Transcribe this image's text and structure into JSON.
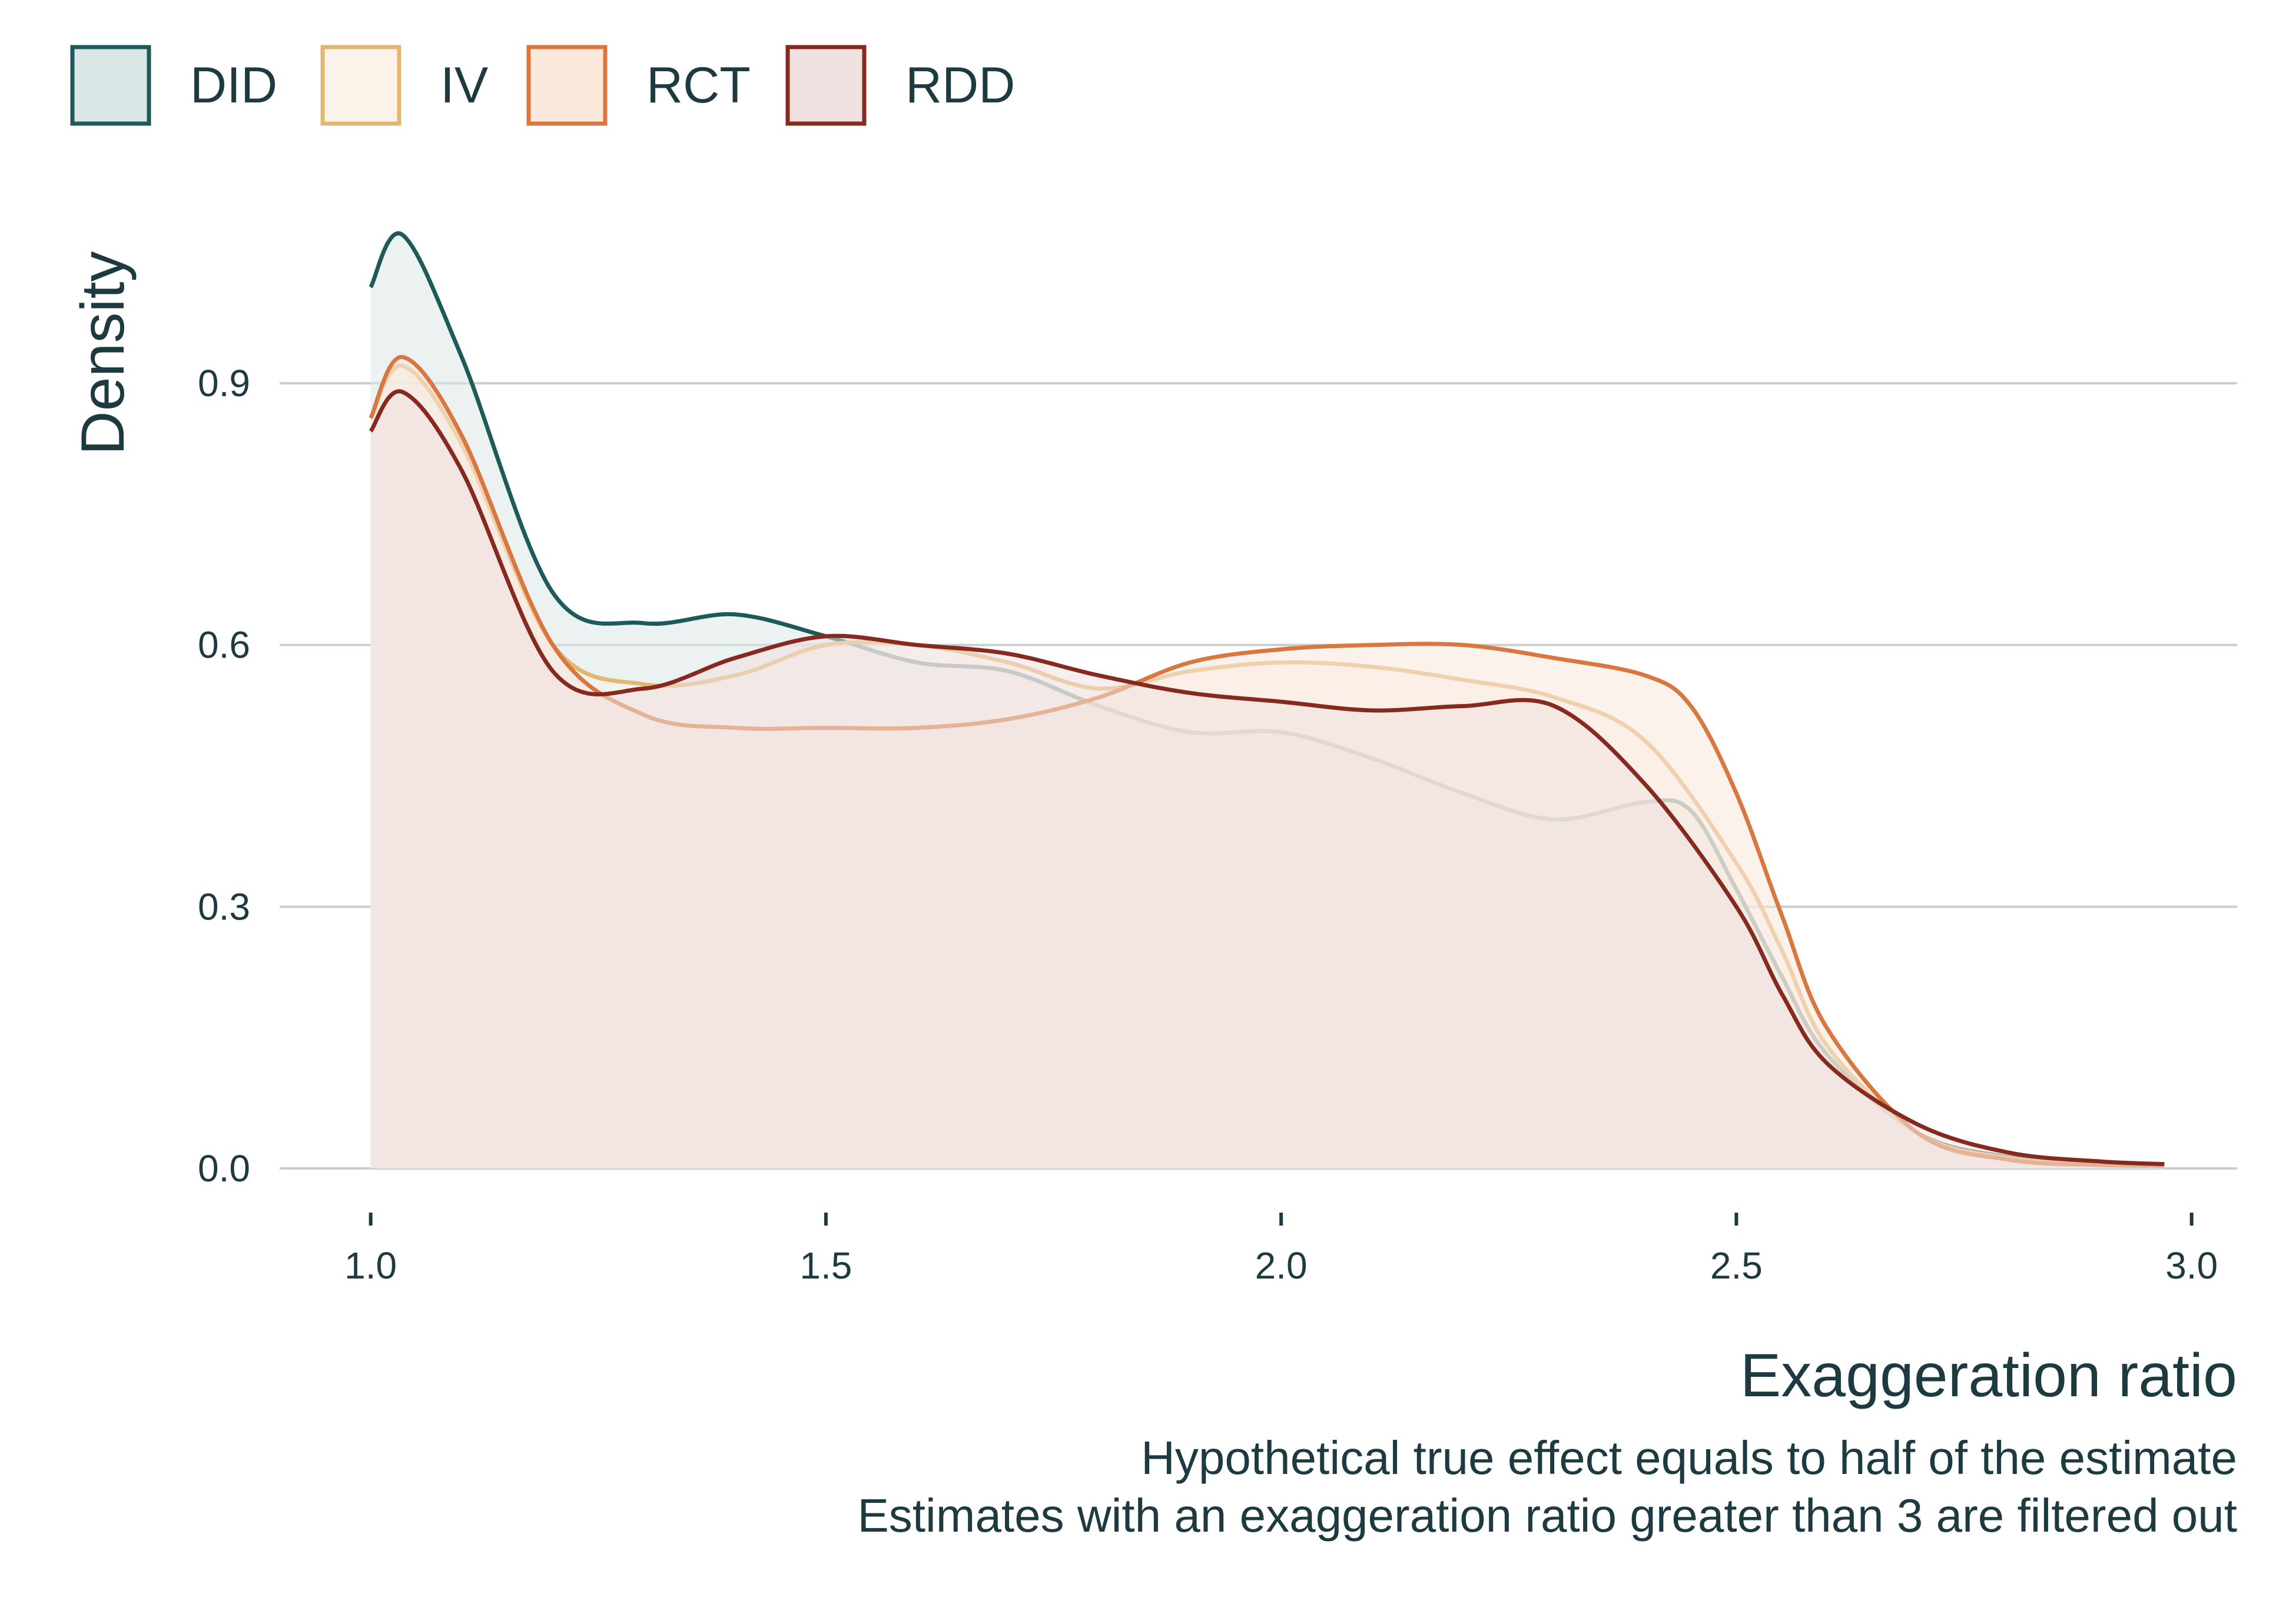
{
  "chart_data": {
    "type": "area",
    "title": "",
    "xlabel": "Exaggeration ratio",
    "ylabel": "Density",
    "caption_lines": [
      "Hypothetical true effect equals to half of the estimate",
      "Estimates with an exaggeration ratio greater than 3 are filtered out"
    ],
    "xlim": [
      0.9,
      3.05
    ],
    "ylim": [
      0,
      1.12
    ],
    "x_ticks": [
      "1.0",
      "1.5",
      "2.0",
      "2.5",
      "3.0"
    ],
    "y_ticks": [
      "0.0",
      "0.3",
      "0.6",
      "0.9"
    ],
    "grid": "horizontal",
    "legend_position": "top-left",
    "series": [
      {
        "name": "DID",
        "stroke": "#1f5a5a",
        "fill": "#dbe7e6",
        "x": [
          1.0,
          1.035,
          1.1,
          1.2,
          1.3,
          1.4,
          1.5,
          1.6,
          1.7,
          1.8,
          1.9,
          2.0,
          2.1,
          2.2,
          2.3,
          2.4,
          2.45,
          2.5,
          2.55,
          2.6,
          2.7,
          2.8,
          2.9,
          2.97
        ],
        "y": [
          1.01,
          1.07,
          0.93,
          0.66,
          0.625,
          0.635,
          0.61,
          0.58,
          0.57,
          0.53,
          0.5,
          0.5,
          0.47,
          0.43,
          0.4,
          0.42,
          0.41,
          0.32,
          0.22,
          0.13,
          0.04,
          0.013,
          0.006,
          0.005
        ]
      },
      {
        "name": "IV",
        "stroke": "#e2b774",
        "fill": "#fbf3ea",
        "x": [
          1.0,
          1.035,
          1.1,
          1.2,
          1.3,
          1.4,
          1.5,
          1.6,
          1.7,
          1.8,
          1.9,
          2.0,
          2.1,
          2.2,
          2.3,
          2.4,
          2.5,
          2.55,
          2.6,
          2.7,
          2.8,
          2.9,
          2.97
        ],
        "y": [
          0.86,
          0.92,
          0.83,
          0.6,
          0.555,
          0.565,
          0.6,
          0.6,
          0.58,
          0.55,
          0.57,
          0.58,
          0.575,
          0.56,
          0.54,
          0.49,
          0.35,
          0.25,
          0.14,
          0.04,
          0.012,
          0.005,
          0.003
        ]
      },
      {
        "name": "RCT",
        "stroke": "#d8773f",
        "fill": "#fae8dd",
        "x": [
          1.0,
          1.035,
          1.1,
          1.2,
          1.3,
          1.4,
          1.5,
          1.6,
          1.7,
          1.8,
          1.9,
          2.0,
          2.1,
          2.2,
          2.3,
          2.4,
          2.45,
          2.5,
          2.55,
          2.6,
          2.7,
          2.8,
          2.9,
          2.97
        ],
        "y": [
          0.86,
          0.93,
          0.84,
          0.6,
          0.52,
          0.505,
          0.505,
          0.505,
          0.515,
          0.54,
          0.58,
          0.595,
          0.6,
          0.6,
          0.585,
          0.565,
          0.53,
          0.43,
          0.29,
          0.16,
          0.04,
          0.01,
          0.004,
          0.003
        ]
      },
      {
        "name": "RDD",
        "stroke": "#862a20",
        "fill": "#f0e1e0",
        "x": [
          1.0,
          1.035,
          1.1,
          1.2,
          1.3,
          1.4,
          1.5,
          1.6,
          1.7,
          1.8,
          1.9,
          2.0,
          2.1,
          2.2,
          2.3,
          2.4,
          2.5,
          2.55,
          2.6,
          2.7,
          2.8,
          2.9,
          2.97
        ],
        "y": [
          0.845,
          0.89,
          0.8,
          0.57,
          0.55,
          0.585,
          0.61,
          0.6,
          0.59,
          0.565,
          0.545,
          0.535,
          0.525,
          0.53,
          0.53,
          0.44,
          0.3,
          0.2,
          0.12,
          0.05,
          0.018,
          0.008,
          0.005
        ]
      }
    ]
  }
}
